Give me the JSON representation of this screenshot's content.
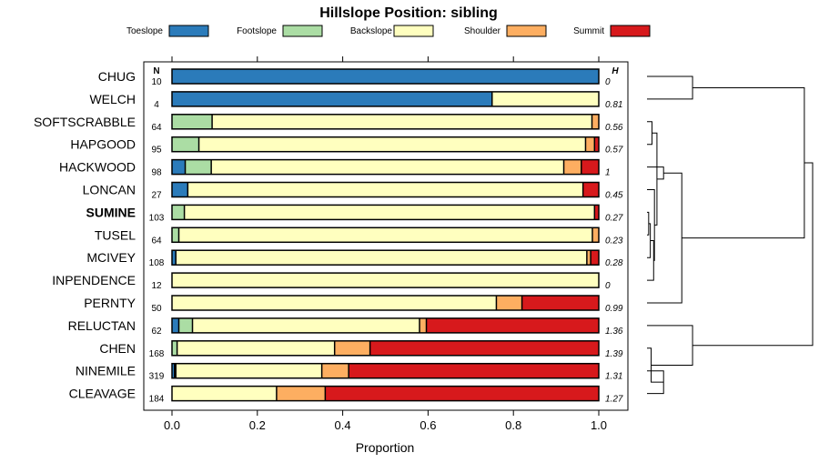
{
  "chart_data": {
    "type": "bar",
    "orientation": "horizontal",
    "stacked": true,
    "title": "Hillslope Position: sibling",
    "xlabel": "Proportion",
    "ylabel": "",
    "xlim": [
      0,
      1
    ],
    "x_ticks": [
      "0.0",
      "0.2",
      "0.4",
      "0.6",
      "0.8",
      "1.0"
    ],
    "n_header": "N",
    "h_header": "H",
    "legend": [
      {
        "name": "Toeslope",
        "color": "#2b7bba"
      },
      {
        "name": "Footslope",
        "color": "#abdda4"
      },
      {
        "name": "Backslope",
        "color": "#ffffbf"
      },
      {
        "name": "Shoulder",
        "color": "#fdae61"
      },
      {
        "name": "Summit",
        "color": "#d7191c"
      }
    ],
    "highlighted_category": "SUMINE",
    "rows": [
      {
        "name": "CHUG",
        "n": "10",
        "h": "0",
        "values": [
          1.0,
          0,
          0,
          0,
          0
        ]
      },
      {
        "name": "WELCH",
        "n": "4",
        "h": "0.81",
        "values": [
          0.75,
          0,
          0.25,
          0,
          0
        ]
      },
      {
        "name": "SOFTSCRABBLE",
        "n": "64",
        "h": "0.56",
        "values": [
          0,
          0.094,
          0.89,
          0.016,
          0
        ]
      },
      {
        "name": "HAPGOOD",
        "n": "95",
        "h": "0.57",
        "values": [
          0,
          0.063,
          0.906,
          0.021,
          0.01
        ]
      },
      {
        "name": "HACKWOOD",
        "n": "98",
        "h": "1",
        "values": [
          0.031,
          0.061,
          0.826,
          0.041,
          0.041
        ]
      },
      {
        "name": "LONCAN",
        "n": "27",
        "h": "0.45",
        "values": [
          0.037,
          0,
          0.926,
          0,
          0.037
        ]
      },
      {
        "name": "SUMINE",
        "n": "103",
        "h": "0.27",
        "values": [
          0,
          0.029,
          0.961,
          0,
          0.01
        ]
      },
      {
        "name": "TUSEL",
        "n": "64",
        "h": "0.23",
        "values": [
          0,
          0.016,
          0.969,
          0.016,
          0
        ]
      },
      {
        "name": "MCIVEY",
        "n": "108",
        "h": "0.28",
        "values": [
          0.009,
          0,
          0.963,
          0.009,
          0.019
        ]
      },
      {
        "name": "INPENDENCE",
        "n": "12",
        "h": "0",
        "values": [
          0,
          0,
          1.0,
          0,
          0
        ]
      },
      {
        "name": "PERNTY",
        "n": "50",
        "h": "0.99",
        "values": [
          0,
          0,
          0.76,
          0.06,
          0.18
        ]
      },
      {
        "name": "RELUCTAN",
        "n": "62",
        "h": "1.36",
        "values": [
          0.016,
          0.032,
          0.532,
          0.016,
          0.403
        ]
      },
      {
        "name": "CHEN",
        "n": "168",
        "h": "1.39",
        "values": [
          0,
          0.012,
          0.369,
          0.083,
          0.536
        ]
      },
      {
        "name": "NINEMILE",
        "n": "319",
        "h": "1.31",
        "values": [
          0.006,
          0.003,
          0.342,
          0.063,
          0.586
        ]
      },
      {
        "name": "CLEAVAGE",
        "n": "184",
        "h": "1.27",
        "values": [
          0,
          0,
          0.245,
          0.114,
          0.641
        ]
      }
    ],
    "dendrogram_merges": [
      [
        0,
        1,
        0.55
      ],
      [
        3,
        2,
        0.06
      ],
      [
        6,
        7,
        0.02
      ],
      [
        8,
        -3,
        0.04
      ],
      [
        9,
        -4,
        0.08
      ],
      [
        5,
        -5,
        0.09
      ],
      [
        -2,
        -6,
        0.12
      ],
      [
        4,
        -7,
        0.2
      ],
      [
        10,
        -8,
        0.42
      ],
      [
        -1,
        -9,
        1.9
      ],
      [
        13,
        14,
        0.2
      ],
      [
        12,
        -11,
        0.05
      ],
      [
        11,
        -12,
        0.55
      ],
      [
        -10,
        -13,
        2.0
      ]
    ]
  }
}
